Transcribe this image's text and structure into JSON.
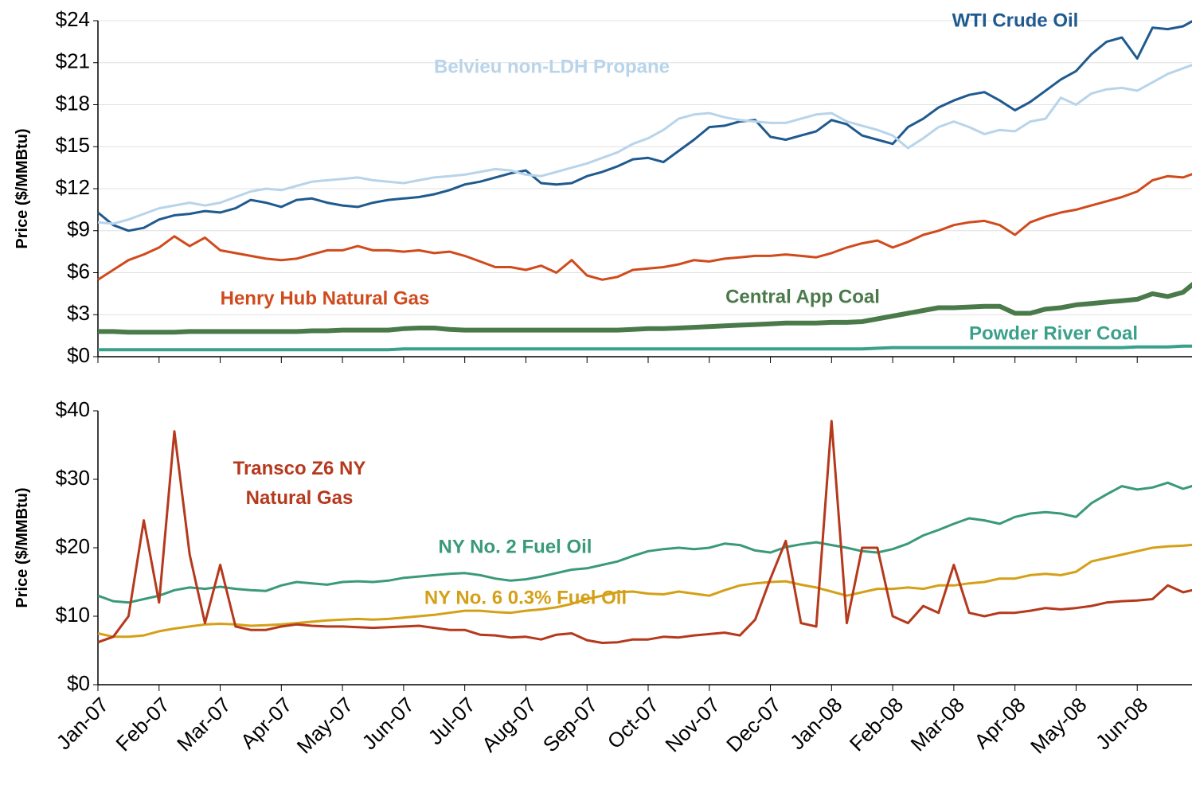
{
  "chart_data": [
    {
      "type": "line",
      "ylabel": "Price ($/MMBtu)",
      "ylim": [
        0,
        24
      ],
      "yticks": [
        {
          "value": 0,
          "label": "$0"
        },
        {
          "value": 3,
          "label": "$3"
        },
        {
          "value": 6,
          "label": "$6"
        },
        {
          "value": 9,
          "label": "$9"
        },
        {
          "value": 12,
          "label": "$12"
        },
        {
          "value": 15,
          "label": "$15"
        },
        {
          "value": 18,
          "label": "$18"
        },
        {
          "value": 21,
          "label": "$21"
        },
        {
          "value": 24,
          "label": "$24"
        }
      ],
      "grid": true,
      "series": [
        {
          "name": "WTI Crude Oil",
          "color": "#1f5a8f",
          "values": [
            10.3,
            9.4,
            9.0,
            9.2,
            9.8,
            10.1,
            10.2,
            10.4,
            10.3,
            10.6,
            11.2,
            11.0,
            10.7,
            11.2,
            11.3,
            11.0,
            10.8,
            10.7,
            11.0,
            11.2,
            11.3,
            11.4,
            11.6,
            11.9,
            12.3,
            12.5,
            12.8,
            13.1,
            13.3,
            12.4,
            12.3,
            12.4,
            12.9,
            13.2,
            13.6,
            14.1,
            14.2,
            13.9,
            14.7,
            15.5,
            16.4,
            16.5,
            16.8,
            16.9,
            15.7,
            15.5,
            15.8,
            16.1,
            16.9,
            16.6,
            15.8,
            15.5,
            15.2,
            16.4,
            17.0,
            17.8,
            18.3,
            18.7,
            18.9,
            18.3,
            17.6,
            18.2,
            19.0,
            19.8,
            20.4,
            21.6,
            22.5,
            22.8,
            21.3,
            23.5,
            23.4,
            23.6,
            24.2
          ]
        },
        {
          "name": "Belvieu non-LDH Propane",
          "color": "#b8d4ea",
          "values": [
            9.6,
            9.5,
            9.8,
            10.2,
            10.6,
            10.8,
            11.0,
            10.8,
            11.0,
            11.4,
            11.8,
            12.0,
            11.9,
            12.2,
            12.5,
            12.6,
            12.7,
            12.8,
            12.6,
            12.5,
            12.4,
            12.6,
            12.8,
            12.9,
            13.0,
            13.2,
            13.4,
            13.3,
            13.0,
            12.9,
            13.2,
            13.5,
            13.8,
            14.2,
            14.6,
            15.2,
            15.6,
            16.2,
            17.0,
            17.3,
            17.4,
            17.1,
            16.9,
            16.8,
            16.7,
            16.7,
            17.0,
            17.3,
            17.4,
            16.8,
            16.5,
            16.2,
            15.8,
            14.9,
            15.6,
            16.4,
            16.8,
            16.4,
            15.9,
            16.2,
            16.1,
            16.8,
            17.0,
            18.5,
            18.0,
            18.8,
            19.1,
            19.2,
            19.0,
            19.6,
            20.2,
            20.6,
            21.0
          ]
        },
        {
          "name": "Henry Hub Natural Gas",
          "color": "#d04a1c",
          "values": [
            5.5,
            6.2,
            6.9,
            7.3,
            7.8,
            8.6,
            7.9,
            8.5,
            7.6,
            7.4,
            7.2,
            7.0,
            6.9,
            7.0,
            7.3,
            7.6,
            7.6,
            7.9,
            7.6,
            7.6,
            7.5,
            7.6,
            7.4,
            7.5,
            7.2,
            6.8,
            6.4,
            6.4,
            6.2,
            6.5,
            6.0,
            6.9,
            5.8,
            5.5,
            5.7,
            6.2,
            6.3,
            6.4,
            6.6,
            6.9,
            6.8,
            7.0,
            7.1,
            7.2,
            7.2,
            7.3,
            7.2,
            7.1,
            7.4,
            7.8,
            8.1,
            8.3,
            7.8,
            8.2,
            8.7,
            9.0,
            9.4,
            9.6,
            9.7,
            9.4,
            8.7,
            9.6,
            10.0,
            10.3,
            10.5,
            10.8,
            11.1,
            11.4,
            11.8,
            12.6,
            12.9,
            12.8,
            13.2
          ]
        },
        {
          "name": "Central App Coal",
          "color": "#4a7a4a",
          "width": 6,
          "values": [
            1.8,
            1.8,
            1.75,
            1.75,
            1.75,
            1.75,
            1.8,
            1.8,
            1.8,
            1.8,
            1.8,
            1.8,
            1.8,
            1.8,
            1.85,
            1.85,
            1.9,
            1.9,
            1.9,
            1.9,
            2.0,
            2.05,
            2.05,
            1.95,
            1.9,
            1.9,
            1.9,
            1.9,
            1.9,
            1.9,
            1.9,
            1.9,
            1.9,
            1.9,
            1.9,
            1.95,
            2.0,
            2.0,
            2.05,
            2.1,
            2.15,
            2.2,
            2.25,
            2.3,
            2.35,
            2.4,
            2.4,
            2.4,
            2.45,
            2.45,
            2.5,
            2.7,
            2.9,
            3.1,
            3.3,
            3.5,
            3.5,
            3.55,
            3.6,
            3.6,
            3.1,
            3.1,
            3.4,
            3.5,
            3.7,
            3.8,
            3.9,
            4.0,
            4.1,
            4.5,
            4.3,
            4.6,
            5.5
          ]
        },
        {
          "name": "Powder River Coal",
          "color": "#3aa08a",
          "width": 4,
          "values": [
            0.5,
            0.5,
            0.5,
            0.5,
            0.5,
            0.5,
            0.5,
            0.5,
            0.5,
            0.5,
            0.5,
            0.5,
            0.5,
            0.5,
            0.5,
            0.5,
            0.5,
            0.5,
            0.5,
            0.5,
            0.55,
            0.55,
            0.55,
            0.55,
            0.55,
            0.55,
            0.55,
            0.55,
            0.55,
            0.55,
            0.55,
            0.55,
            0.55,
            0.55,
            0.55,
            0.55,
            0.55,
            0.55,
            0.55,
            0.55,
            0.55,
            0.55,
            0.55,
            0.55,
            0.55,
            0.55,
            0.55,
            0.55,
            0.55,
            0.55,
            0.55,
            0.6,
            0.65,
            0.65,
            0.65,
            0.65,
            0.65,
            0.65,
            0.65,
            0.65,
            0.65,
            0.65,
            0.65,
            0.65,
            0.65,
            0.65,
            0.65,
            0.65,
            0.7,
            0.7,
            0.7,
            0.75,
            0.75
          ]
        }
      ]
    },
    {
      "type": "line",
      "ylabel": "Price ($/MMBtu)",
      "ylim": [
        0,
        40
      ],
      "yticks": [
        {
          "value": 0,
          "label": "$0"
        },
        {
          "value": 10,
          "label": "$10"
        },
        {
          "value": 20,
          "label": "$20"
        },
        {
          "value": 30,
          "label": "$30"
        },
        {
          "value": 40,
          "label": "$40"
        }
      ],
      "grid": false,
      "categories": [
        "Jan-07",
        null,
        null,
        null,
        "Feb-07",
        null,
        null,
        null,
        "Mar-07",
        null,
        null,
        null,
        "Apr-07",
        null,
        null,
        null,
        "May-07",
        null,
        null,
        null,
        "Jun-07",
        null,
        null,
        null,
        "Jul-07",
        null,
        null,
        null,
        "Aug-07",
        null,
        null,
        null,
        "Sep-07",
        null,
        null,
        null,
        "Oct-07",
        null,
        null,
        null,
        "Nov-07",
        null,
        null,
        null,
        "Dec-07",
        null,
        null,
        null,
        "Jan-08",
        null,
        null,
        null,
        "Feb-08",
        null,
        null,
        null,
        "Mar-08",
        null,
        null,
        null,
        "Apr-08",
        null,
        null,
        null,
        "May-08",
        null,
        null,
        null,
        "Jun-08",
        null,
        null,
        null,
        null
      ],
      "series": [
        {
          "name": "NY No. 2 Fuel Oil",
          "color": "#3a9a78",
          "values": [
            13.0,
            12.2,
            12.0,
            12.5,
            13.0,
            13.8,
            14.2,
            14.0,
            14.3,
            14.0,
            13.8,
            13.7,
            14.5,
            15.0,
            14.8,
            14.6,
            15.0,
            15.1,
            15.0,
            15.2,
            15.6,
            15.8,
            16.0,
            16.2,
            16.3,
            16.0,
            15.5,
            15.2,
            15.4,
            15.8,
            16.3,
            16.8,
            17.0,
            17.5,
            18.0,
            18.8,
            19.5,
            19.8,
            20.0,
            19.8,
            20.0,
            20.6,
            20.4,
            19.6,
            19.3,
            20.1,
            20.5,
            20.8,
            20.4,
            20.0,
            19.5,
            19.3,
            19.8,
            20.6,
            21.8,
            22.6,
            23.5,
            24.3,
            24.0,
            23.5,
            24.5,
            25.0,
            25.2,
            25.0,
            24.5,
            26.5,
            27.8,
            29.0,
            28.5,
            28.8,
            29.5,
            28.6,
            29.3
          ]
        },
        {
          "name": "NY No. 6 0.3% Fuel Oil",
          "color": "#d4a017",
          "values": [
            7.5,
            7.0,
            7.0,
            7.2,
            7.8,
            8.2,
            8.5,
            8.8,
            8.9,
            8.8,
            8.6,
            8.7,
            8.8,
            9.0,
            9.2,
            9.4,
            9.5,
            9.6,
            9.5,
            9.6,
            9.8,
            10.0,
            10.2,
            10.5,
            10.8,
            10.8,
            10.6,
            10.5,
            10.8,
            11.0,
            11.3,
            11.8,
            12.5,
            13.0,
            13.5,
            13.6,
            13.3,
            13.2,
            13.6,
            13.3,
            13.0,
            13.8,
            14.5,
            14.8,
            15.0,
            15.1,
            14.6,
            14.2,
            13.6,
            13.0,
            13.5,
            14.0,
            14.0,
            14.2,
            14.0,
            14.5,
            14.5,
            14.8,
            15.0,
            15.5,
            15.5,
            16.0,
            16.2,
            16.0,
            16.5,
            18.0,
            18.5,
            19.0,
            19.5,
            20.0,
            20.2,
            20.3,
            20.5
          ]
        },
        {
          "name": "Transco Z6 NY Natural Gas",
          "color": "#b5391d",
          "values": [
            6.2,
            7.0,
            10.0,
            24.0,
            12.0,
            37.0,
            19.0,
            9.0,
            17.5,
            8.5,
            8.0,
            8.0,
            8.5,
            8.8,
            8.6,
            8.5,
            8.5,
            8.4,
            8.3,
            8.4,
            8.5,
            8.6,
            8.3,
            8.0,
            8.0,
            7.3,
            7.2,
            6.9,
            7.0,
            6.6,
            7.3,
            7.5,
            6.5,
            6.1,
            6.2,
            6.6,
            6.6,
            7.0,
            6.9,
            7.2,
            7.4,
            7.6,
            7.2,
            9.5,
            15.5,
            21.0,
            9.0,
            8.5,
            38.5,
            9.0,
            20.0,
            20.0,
            10.0,
            9.0,
            11.5,
            10.5,
            17.5,
            10.5,
            10.0,
            10.5,
            10.5,
            10.8,
            11.2,
            11.0,
            11.2,
            11.5,
            12.0,
            12.2,
            12.3,
            12.5,
            14.5,
            13.5,
            14.0
          ]
        }
      ]
    }
  ]
}
